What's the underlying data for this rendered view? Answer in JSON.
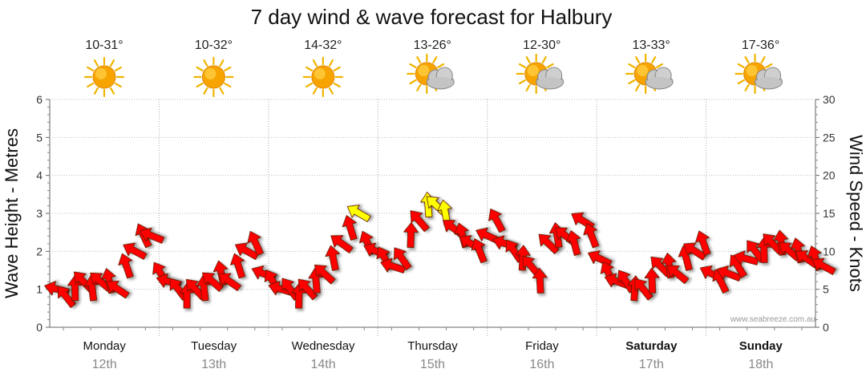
{
  "chart_data": {
    "type": "scatter",
    "title": "7 day wind & wave forecast for Halbury",
    "ylabel_left": "Wave Height - Metres",
    "ylabel_right": "Wind Speed - Knots",
    "ylim_left": [
      0,
      6
    ],
    "ylim_right": [
      0,
      30
    ],
    "yticks_left": [
      "0",
      "1",
      "2",
      "3",
      "4",
      "5",
      "6"
    ],
    "yticks_right": [
      "0",
      "5",
      "10",
      "15",
      "20",
      "25",
      "30"
    ],
    "credit": "www.seabreeze.com.au",
    "grid": true,
    "days": [
      {
        "name": "Monday",
        "date": "12th",
        "temp": "10-31°",
        "icon": "sunny-icon",
        "bold": false
      },
      {
        "name": "Tuesday",
        "date": "13th",
        "temp": "10-32°",
        "icon": "sunny-icon",
        "bold": false
      },
      {
        "name": "Wednesday",
        "date": "14th",
        "temp": "14-32°",
        "icon": "sunny-icon",
        "bold": false
      },
      {
        "name": "Thursday",
        "date": "15th",
        "temp": "13-26°",
        "icon": "partly-cloudy-icon",
        "bold": false
      },
      {
        "name": "Friday",
        "date": "16th",
        "temp": "12-30°",
        "icon": "partly-cloudy-icon",
        "bold": false
      },
      {
        "name": "Saturday",
        "date": "17th",
        "temp": "13-33°",
        "icon": "partly-cloudy-icon",
        "bold": true
      },
      {
        "name": "Sunday",
        "date": "18th",
        "temp": "17-36°",
        "icon": "partly-cloudy-icon",
        "bold": true
      }
    ],
    "x_unit": "days from start",
    "series": [
      {
        "name": "wind arrows",
        "values_knots": [
          5,
          4,
          5,
          6,
          5,
          6,
          6,
          5,
          8,
          10,
          12,
          12,
          7,
          6,
          5,
          4,
          5,
          5,
          6,
          7,
          6,
          8,
          10,
          11,
          7,
          6,
          5,
          5,
          4,
          5,
          6,
          7,
          9,
          11,
          13,
          15,
          11,
          10,
          9,
          8,
          9,
          12,
          14,
          16,
          16,
          15,
          13,
          12,
          11,
          10,
          12,
          14,
          11,
          10,
          9,
          8,
          6,
          11,
          12,
          12,
          11,
          14,
          12,
          9,
          7,
          6,
          6,
          5,
          5,
          6,
          8,
          8,
          7,
          9,
          10,
          11,
          7,
          6,
          7,
          8,
          9,
          10,
          10,
          11,
          11,
          10,
          10,
          9,
          9,
          8
        ],
        "color_threshold_knots": 15,
        "colors": {
          "low": "#ff0000",
          "high": "#ffff00"
        }
      }
    ]
  }
}
